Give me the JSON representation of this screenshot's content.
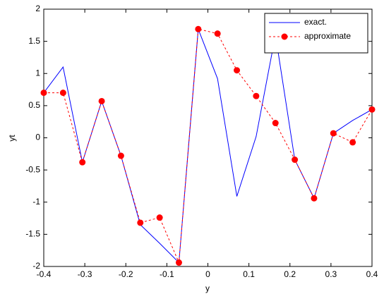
{
  "chart_data": {
    "type": "line",
    "xlabel": "y",
    "ylabel": "yt",
    "x": [
      -0.4,
      -0.3529,
      -0.3059,
      -0.2588,
      -0.2118,
      -0.1647,
      -0.1176,
      -0.0706,
      -0.0235,
      0.0235,
      0.0706,
      0.1176,
      0.1647,
      0.2118,
      0.2588,
      0.3059,
      0.3529,
      0.4
    ],
    "series": [
      {
        "name": "exact.",
        "color": "#0000ff",
        "dashed": false,
        "marker": false,
        "values": [
          0.7,
          1.1,
          -0.38,
          0.57,
          -0.28,
          -1.35,
          -1.64,
          -1.94,
          1.69,
          0.92,
          -0.91,
          0.02,
          1.6,
          -0.34,
          -0.94,
          0.07,
          0.27,
          0.44
        ]
      },
      {
        "name": "approximate",
        "color": "#ff0000",
        "dashed": true,
        "marker": true,
        "values": [
          0.7,
          0.7,
          -0.38,
          0.57,
          -0.28,
          -1.32,
          -1.24,
          -1.94,
          1.69,
          1.62,
          1.05,
          0.65,
          0.23,
          -0.34,
          -0.94,
          0.07,
          -0.07,
          0.44
        ]
      }
    ],
    "xlim": [
      -0.4,
      0.4
    ],
    "ylim": [
      -2,
      2
    ],
    "xticks": [
      -0.4,
      -0.3,
      -0.2,
      -0.1,
      0,
      0.1,
      0.2,
      0.3,
      0.4
    ],
    "yticks": [
      -2,
      -1.5,
      -1,
      -0.5,
      0,
      0.5,
      1,
      1.5,
      2
    ],
    "legend": "northeast"
  }
}
